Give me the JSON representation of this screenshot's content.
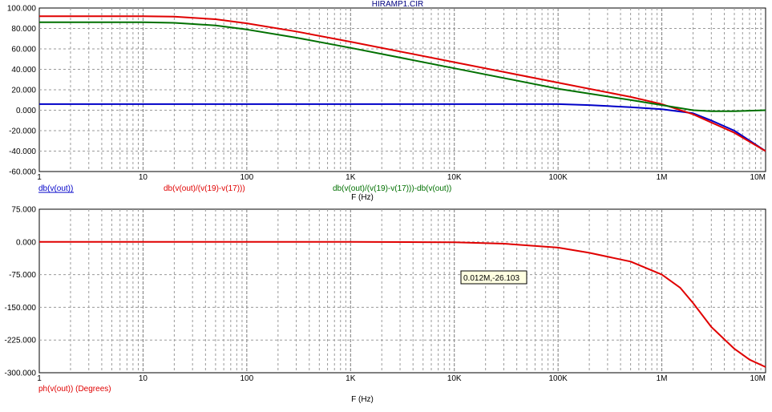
{
  "title": "HIRAMP1.CIR",
  "x_tick_labels": [
    "1",
    "10",
    "100",
    "1K",
    "10K",
    "100K",
    "1M",
    "10M"
  ],
  "colors": {
    "blue": "#0000c8",
    "red": "#e00000",
    "green": "#007000",
    "grid": "#9a9a9a",
    "tooltip_bg": "#ffffe1"
  },
  "chart_data": [
    {
      "type": "line",
      "xscale": "log",
      "xlim": [
        1,
        10000000
      ],
      "ylim": [
        -60,
        100
      ],
      "ytick_labels": [
        "100.000",
        "80.000",
        "60.000",
        "40.000",
        "20.000",
        "0.000",
        "-20.000",
        "-40.000",
        "-60.000"
      ],
      "yticks": [
        100,
        80,
        60,
        40,
        20,
        0,
        -20,
        -40,
        -60
      ],
      "xlabel": "F (Hz)",
      "grid": true,
      "series": [
        {
          "name": "db(v(out))",
          "color": "blue",
          "x": [
            1,
            100,
            10000,
            100000,
            200000,
            500000,
            1000000,
            2000000,
            3000000,
            5000000,
            10000000
          ],
          "y": [
            6,
            6,
            6,
            6,
            5,
            3,
            1,
            -3,
            -10,
            -20,
            -40
          ]
        },
        {
          "name": "db(v(out)/(v(19)-v(17)))",
          "color": "red",
          "x": [
            1,
            10,
            20,
            50,
            100,
            300,
            1000,
            10000,
            100000,
            500000,
            1000000,
            2000000,
            3000000,
            5000000,
            10000000
          ],
          "y": [
            92,
            92,
            91.5,
            89,
            85,
            77,
            67,
            47,
            27,
            13,
            6,
            -4,
            -12,
            -22,
            -40
          ]
        },
        {
          "name": "db(v(out)/(v(19)-v(17)))-db(v(out))",
          "color": "green",
          "x": [
            1,
            10,
            20,
            50,
            100,
            300,
            1000,
            10000,
            100000,
            500000,
            1000000,
            2000000,
            3000000,
            5000000,
            10000000
          ],
          "y": [
            86,
            86,
            85.5,
            83,
            79,
            71,
            61,
            41,
            21,
            10,
            5,
            0,
            -1,
            -1,
            0
          ]
        }
      ]
    },
    {
      "type": "line",
      "xscale": "log",
      "xlim": [
        1,
        10000000
      ],
      "ylim": [
        -300,
        75
      ],
      "ytick_labels": [
        "75.000",
        "0.000",
        "-75.000",
        "-150.000",
        "-225.000",
        "-300.000"
      ],
      "yticks": [
        75,
        0,
        -75,
        -150,
        -225,
        -300
      ],
      "xlabel": "F (Hz)",
      "grid": true,
      "series": [
        {
          "name": "ph(v(out)) (Degrees)",
          "color": "red",
          "x": [
            1,
            1000,
            5000,
            10000,
            30000,
            100000,
            200000,
            500000,
            1000000,
            1500000,
            2000000,
            3000000,
            5000000,
            7000000,
            10000000
          ],
          "y": [
            0,
            0,
            -0.5,
            -1,
            -4,
            -13,
            -25,
            -45,
            -75,
            -105,
            -140,
            -195,
            -245,
            -270,
            -287
          ]
        }
      ],
      "annotation": {
        "text": "0.012M,-26.103"
      }
    }
  ]
}
